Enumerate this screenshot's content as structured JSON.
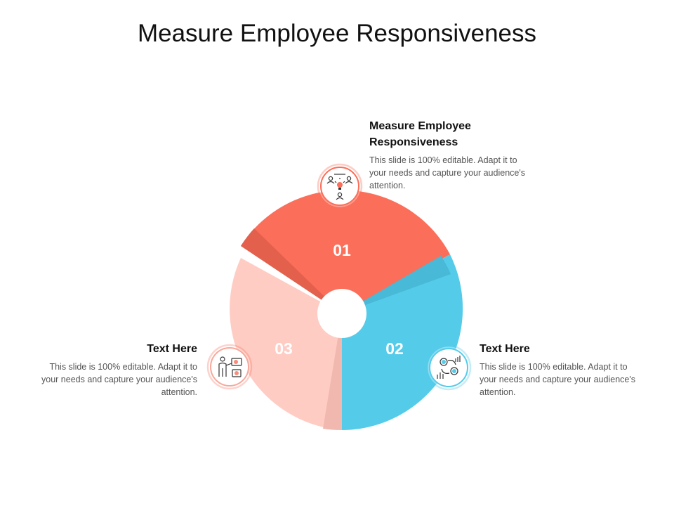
{
  "title": "Measure Employee Responsiveness",
  "segments": [
    {
      "number": "01",
      "heading": "Measure Employee Responsiveness",
      "text": "This slide is 100% editable. Adapt it to your needs and capture your audience's attention.",
      "color": "#FB6E59",
      "icon": "employee-idea-icon"
    },
    {
      "number": "02",
      "heading": "Text Here",
      "text": "This slide is 100% editable. Adapt it to your needs and capture your audience's attention.",
      "color": "#55CBEA",
      "icon": "money-exchange-icon"
    },
    {
      "number": "03",
      "heading": "Text Here",
      "text": "This slide is 100% editable. Adapt it to your needs and capture your audience's attention.",
      "color": "#FFCCC4",
      "icon": "investor-presentation-icon"
    }
  ]
}
